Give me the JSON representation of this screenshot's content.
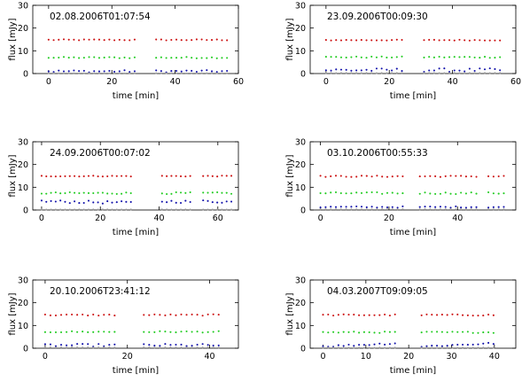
{
  "chart_data": [
    {
      "type": "scatter",
      "title": "",
      "label": "02.08.2006T01:07:54",
      "xlabel": "time [min]",
      "ylabel": "flux [mJy]",
      "xlim": [
        -5,
        60
      ],
      "ylim": [
        0,
        30
      ],
      "xticks": [
        0,
        20,
        40,
        60
      ],
      "yticks": [
        0,
        10,
        20,
        30
      ],
      "series": [
        {
          "color": "#cc1111",
          "level": 14.8,
          "amp": 0.25,
          "slope": 0,
          "segments": [
            [
              0,
              28,
              1.6
            ],
            [
              34,
              57,
              1.6
            ]
          ]
        },
        {
          "color": "#22cc22",
          "level": 7.0,
          "amp": 0.3,
          "slope": 0,
          "segments": [
            [
              0,
              28,
              1.6
            ],
            [
              34,
              57,
              1.6
            ]
          ]
        },
        {
          "color": "#1111aa",
          "level": 1.0,
          "amp": 0.5,
          "slope": 0,
          "segments": [
            [
              0,
              28,
              1.6
            ],
            [
              34,
              57,
              1.6
            ]
          ]
        },
        {
          "color": "#999999",
          "level": 0.1,
          "amp": 0.05,
          "slope": 0,
          "segments": [
            [
              0,
              28,
              1.6
            ],
            [
              34,
              57,
              1.6
            ]
          ]
        }
      ]
    },
    {
      "type": "scatter",
      "title": "",
      "label": "23.09.2006T00:09:30",
      "xlabel": "time [min]",
      "ylabel": "flux [mJy]",
      "xlim": [
        -5,
        60
      ],
      "ylim": [
        0,
        30
      ],
      "xticks": [
        0,
        20,
        40,
        60
      ],
      "yticks": [
        0,
        10,
        20,
        30
      ],
      "series": [
        {
          "color": "#cc1111",
          "level": 14.7,
          "amp": 0.2,
          "slope": 0,
          "segments": [
            [
              0,
              25,
              1.6
            ],
            [
              31,
              55,
              1.6
            ]
          ]
        },
        {
          "color": "#22cc22",
          "level": 7.2,
          "amp": 0.3,
          "slope": 0,
          "segments": [
            [
              0,
              25,
              1.6
            ],
            [
              31,
              55,
              1.6
            ]
          ]
        },
        {
          "color": "#1111aa",
          "level": 1.5,
          "amp": 0.8,
          "slope": 0,
          "segments": [
            [
              0,
              25,
              1.6
            ],
            [
              31,
              55,
              1.6
            ]
          ]
        },
        {
          "color": "#999999",
          "level": 0.2,
          "amp": 0.05,
          "slope": 0,
          "segments": [
            [
              0,
              25,
              1.6
            ],
            [
              31,
              55,
              1.6
            ]
          ]
        }
      ]
    },
    {
      "type": "scatter",
      "title": "",
      "label": "24.09.2006T00:07:02",
      "xlabel": "time [min]",
      "ylabel": "flux [mJy]",
      "xlim": [
        -3,
        67
      ],
      "ylim": [
        0,
        30
      ],
      "xticks": [
        0,
        20,
        40,
        60
      ],
      "yticks": [
        0,
        10,
        20,
        30
      ],
      "series": [
        {
          "color": "#cc1111",
          "level": 14.9,
          "amp": 0.2,
          "slope": 0,
          "segments": [
            [
              0,
              31,
              1.6
            ],
            [
              41,
              52,
              1.6
            ],
            [
              55,
              65,
              1.6
            ]
          ]
        },
        {
          "color": "#22cc22",
          "level": 7.4,
          "amp": 0.4,
          "slope": 0,
          "segments": [
            [
              0,
              31,
              1.6
            ],
            [
              41,
              52,
              1.6
            ],
            [
              55,
              65,
              1.6
            ]
          ]
        },
        {
          "color": "#1111aa",
          "level": 3.8,
          "amp": 0.6,
          "slope": -0.02,
          "segments": [
            [
              0,
              31,
              1.6
            ],
            [
              41,
              52,
              1.6
            ],
            [
              55,
              65,
              1.6
            ]
          ]
        },
        {
          "color": "#999999",
          "level": 0.2,
          "amp": 0.05,
          "slope": 0,
          "segments": [
            [
              0,
              31,
              1.6
            ],
            [
              41,
              52,
              1.6
            ],
            [
              55,
              65,
              1.6
            ]
          ]
        }
      ]
    },
    {
      "type": "scatter",
      "title": "",
      "label": "03.10.2006T00:55:33",
      "xlabel": "time [min]",
      "ylabel": "flux [mJy]",
      "xlim": [
        -3,
        57
      ],
      "ylim": [
        0,
        30
      ],
      "xticks": [
        0,
        20,
        40
      ],
      "yticks": [
        0,
        10,
        20,
        30
      ],
      "series": [
        {
          "color": "#cc1111",
          "level": 14.8,
          "amp": 0.3,
          "slope": 0,
          "segments": [
            [
              0,
              25,
              1.5
            ],
            [
              29,
              46,
              1.5
            ],
            [
              49,
              54,
              1.5
            ]
          ]
        },
        {
          "color": "#22cc22",
          "level": 7.4,
          "amp": 0.4,
          "slope": 0,
          "segments": [
            [
              0,
              25,
              1.5
            ],
            [
              29,
              46,
              1.5
            ],
            [
              49,
              54,
              1.5
            ]
          ]
        },
        {
          "color": "#1111aa",
          "level": 1.3,
          "amp": 0.3,
          "slope": 0,
          "segments": [
            [
              0,
              25,
              1.5
            ],
            [
              29,
              46,
              1.5
            ],
            [
              49,
              54,
              1.5
            ]
          ]
        },
        {
          "color": "#999999",
          "level": 0.3,
          "amp": 0.05,
          "slope": 0,
          "segments": [
            [
              0,
              25,
              1.5
            ],
            [
              29,
              46,
              1.5
            ],
            [
              49,
              54,
              1.5
            ]
          ]
        }
      ]
    },
    {
      "type": "scatter",
      "title": "",
      "label": "20.10.2006T23:41:12",
      "xlabel": "time [min]",
      "ylabel": "flux [mJy]",
      "xlim": [
        -3,
        47
      ],
      "ylim": [
        0,
        30
      ],
      "xticks": [
        0,
        20,
        40
      ],
      "yticks": [
        0,
        10,
        20,
        30
      ],
      "series": [
        {
          "color": "#cc1111",
          "level": 14.6,
          "amp": 0.3,
          "slope": 0,
          "segments": [
            [
              0,
              18,
              1.3
            ],
            [
              24,
              43,
              1.3
            ]
          ]
        },
        {
          "color": "#22cc22",
          "level": 7.2,
          "amp": 0.3,
          "slope": 0,
          "segments": [
            [
              0,
              18,
              1.3
            ],
            [
              24,
              43,
              1.3
            ]
          ]
        },
        {
          "color": "#1111aa",
          "level": 1.3,
          "amp": 0.6,
          "slope": 0,
          "segments": [
            [
              0,
              18,
              1.3
            ],
            [
              24,
              43,
              1.3
            ]
          ]
        },
        {
          "color": "#999999",
          "level": 0.3,
          "amp": 0.05,
          "slope": 0,
          "segments": [
            [
              0,
              18,
              1.3
            ],
            [
              24,
              43,
              1.3
            ]
          ]
        }
      ]
    },
    {
      "type": "scatter",
      "title": "",
      "label": "04.03.2007T09:09:05",
      "xlabel": "time [min]",
      "ylabel": "flux [mJy]",
      "xlim": [
        -3,
        45
      ],
      "ylim": [
        0,
        30
      ],
      "xticks": [
        0,
        10,
        20,
        30,
        40
      ],
      "yticks": [
        0,
        10,
        20,
        30
      ],
      "series": [
        {
          "color": "#cc1111",
          "level": 14.6,
          "amp": 0.3,
          "slope": 0,
          "segments": [
            [
              0,
              17,
              1.2
            ],
            [
              23,
              40,
              1.2
            ]
          ]
        },
        {
          "color": "#22cc22",
          "level": 7.0,
          "amp": 0.3,
          "slope": 0,
          "segments": [
            [
              0,
              17,
              1.2
            ],
            [
              23,
              40,
              1.2
            ]
          ]
        },
        {
          "color": "#1111aa",
          "level": 0.8,
          "amp": 0.4,
          "slope": 0.08,
          "segments": [
            [
              0,
              17,
              1.2
            ],
            [
              23,
              40,
              1.2
            ]
          ]
        },
        {
          "color": "#999999",
          "level": 0.2,
          "amp": 0.05,
          "slope": 0,
          "segments": [
            [
              0,
              17,
              1.2
            ],
            [
              23,
              40,
              1.2
            ]
          ]
        }
      ]
    }
  ]
}
